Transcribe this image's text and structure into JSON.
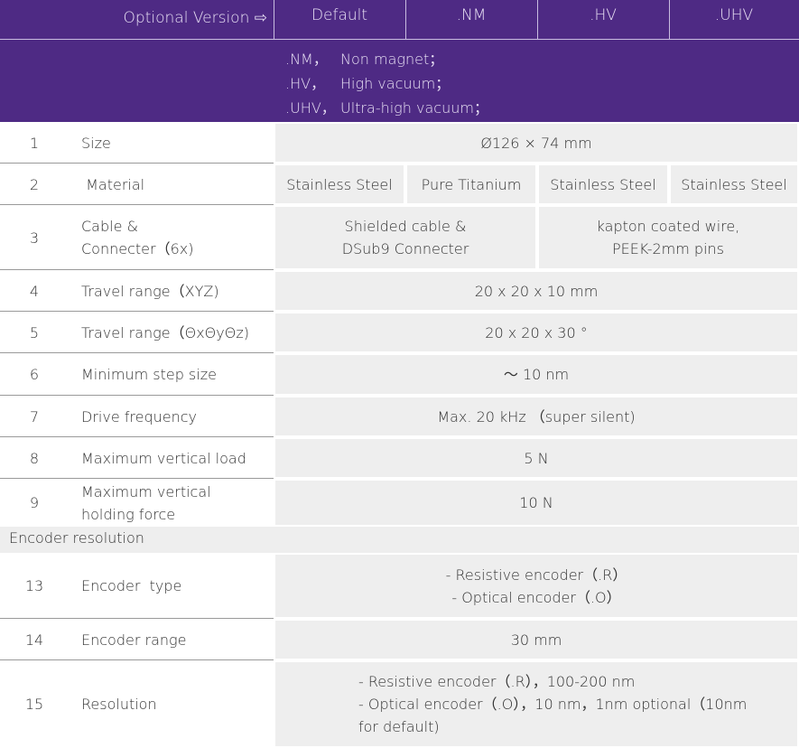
{
  "header": {
    "label": "Optional Version ⇨",
    "columns": [
      "Default",
      ".NM",
      ".HV",
      ".UHV"
    ]
  },
  "notes": [
    [
      ".NM，",
      "Non magnet；"
    ],
    [
      ".HV，",
      "High vacuum；"
    ],
    [
      ".UHV，",
      "Ultra-high vacuum；"
    ]
  ],
  "rows": [
    {
      "no": "1",
      "label": [
        "Size"
      ],
      "cells": [
        [
          "Ø126 × 74 mm"
        ]
      ]
    },
    {
      "no": "2",
      "label": [
        " Material"
      ],
      "cells": [
        [
          "Stainless Steel"
        ],
        [
          "Pure Titanium"
        ],
        [
          "Stainless Steel"
        ],
        [
          "Stainless Steel"
        ]
      ]
    },
    {
      "no": "3",
      "label": [
        "Cable &",
        "Connecter（6x)"
      ],
      "cells": [
        [
          "Shielded cable &",
          "DSub9 Connecter"
        ],
        [
          "kapton coated wire,",
          "PEEK-2mm pins"
        ]
      ]
    },
    {
      "no": "4",
      "label": [
        "Travel range（XYZ)"
      ],
      "cells": [
        [
          "20 x 20 x 10 mm"
        ]
      ]
    },
    {
      "no": "5",
      "label": [
        "Travel range（ΘxΘyΘz)"
      ],
      "cells": [
        [
          "20 x 20 x 30 °"
        ]
      ]
    },
    {
      "no": "6",
      "label": [
        "Minimum step size"
      ],
      "cells": [
        [
          "～ 10 nm"
        ]
      ]
    },
    {
      "no": "7",
      "label": [
        "Drive frequency"
      ],
      "cells": [
        [
          "Max. 20 kHz （super silent)"
        ]
      ]
    },
    {
      "no": "8",
      "label": [
        "Maximum vertical load"
      ],
      "cells": [
        [
          "5 N"
        ]
      ]
    },
    {
      "no": "9",
      "label": [
        "Maximum vertical",
        "holding force"
      ],
      "cells": [
        [
          "10 N"
        ]
      ]
    },
    {
      "section": "Encoder  resolution"
    },
    {
      "no": "13",
      "label": [
        "Encoder  type"
      ],
      "cells": [
        [
          "- Resistive encoder（.R）",
          "- Optical encoder（.O）"
        ]
      ]
    },
    {
      "no": "14",
      "label": [
        "Encoder range"
      ],
      "cells": [
        [
          "30 mm"
        ]
      ]
    },
    {
      "no": "15",
      "label": [
        "Resolution"
      ],
      "cells": [
        [
          "- Resistive encoder（.R），100-200 nm",
          "- Optical encoder（.O），10 nm，1nm optional（10nm",
          "for default)"
        ]
      ],
      "align": "left"
    }
  ]
}
